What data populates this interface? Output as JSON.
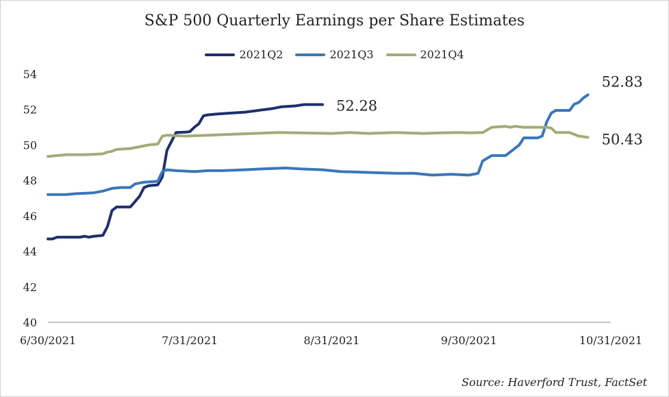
{
  "chart_data": {
    "type": "line",
    "title": "S&P 500 Quarterly Earnings per Share Estimates",
    "xlabel": "",
    "ylabel": "",
    "ylim": [
      40,
      54
    ],
    "yticks": [
      "40",
      "42",
      "44",
      "46",
      "48",
      "50",
      "52",
      "54"
    ],
    "xticks": [
      "6/30/2021",
      "7/31/2021",
      "8/31/2021",
      "9/30/2021",
      "10/31/2021"
    ],
    "xrange_days": [
      0,
      123
    ],
    "legend_position": "top-center",
    "grid": false,
    "series": [
      {
        "name": "2021Q2",
        "color": "#1f2f6e",
        "end_label": "52.28",
        "points": [
          [
            0,
            44.7
          ],
          [
            1,
            44.7
          ],
          [
            2,
            44.8
          ],
          [
            5,
            44.8
          ],
          [
            7,
            44.8
          ],
          [
            8,
            44.85
          ],
          [
            9,
            44.8
          ],
          [
            10,
            44.85
          ],
          [
            12,
            44.9
          ],
          [
            13,
            45.4
          ],
          [
            14,
            46.3
          ],
          [
            15,
            46.5
          ],
          [
            18,
            46.5
          ],
          [
            19,
            46.8
          ],
          [
            20,
            47.1
          ],
          [
            21,
            47.6
          ],
          [
            22,
            47.7
          ],
          [
            24,
            47.75
          ],
          [
            25,
            48.2
          ],
          [
            26,
            49.7
          ],
          [
            27,
            50.2
          ],
          [
            28,
            50.7
          ],
          [
            30,
            50.72
          ],
          [
            31,
            50.75
          ],
          [
            32,
            51.0
          ],
          [
            33,
            51.2
          ],
          [
            34,
            51.65
          ],
          [
            35,
            51.7
          ],
          [
            37,
            51.75
          ],
          [
            40,
            51.8
          ],
          [
            43,
            51.85
          ],
          [
            46,
            51.95
          ],
          [
            49,
            52.05
          ],
          [
            51,
            52.15
          ],
          [
            54,
            52.2
          ],
          [
            56,
            52.28
          ],
          [
            60,
            52.28
          ]
        ]
      },
      {
        "name": "2021Q3",
        "color": "#3b76b8",
        "end_label": "52.83",
        "points": [
          [
            0,
            47.2
          ],
          [
            2,
            47.2
          ],
          [
            4,
            47.2
          ],
          [
            6,
            47.25
          ],
          [
            10,
            47.3
          ],
          [
            12,
            47.4
          ],
          [
            14,
            47.55
          ],
          [
            16,
            47.6
          ],
          [
            18,
            47.6
          ],
          [
            19,
            47.8
          ],
          [
            21,
            47.9
          ],
          [
            24,
            47.95
          ],
          [
            25,
            48.5
          ],
          [
            26,
            48.6
          ],
          [
            28,
            48.55
          ],
          [
            32,
            48.5
          ],
          [
            35,
            48.55
          ],
          [
            38,
            48.55
          ],
          [
            43,
            48.6
          ],
          [
            47,
            48.65
          ],
          [
            52,
            48.7
          ],
          [
            55,
            48.65
          ],
          [
            60,
            48.6
          ],
          [
            64,
            48.5
          ],
          [
            70,
            48.45
          ],
          [
            76,
            48.4
          ],
          [
            80,
            48.4
          ],
          [
            84,
            48.3
          ],
          [
            88,
            48.35
          ],
          [
            92,
            48.3
          ],
          [
            94,
            48.4
          ],
          [
            95,
            49.1
          ],
          [
            97,
            49.4
          ],
          [
            100,
            49.4
          ],
          [
            101,
            49.6
          ],
          [
            103,
            50.0
          ],
          [
            104,
            50.4
          ],
          [
            107,
            50.4
          ],
          [
            108,
            50.5
          ],
          [
            109,
            51.3
          ],
          [
            110,
            51.8
          ],
          [
            111,
            51.95
          ],
          [
            114,
            51.95
          ],
          [
            115,
            52.3
          ],
          [
            116,
            52.4
          ],
          [
            117,
            52.65
          ],
          [
            118,
            52.83
          ]
        ]
      },
      {
        "name": "2021Q4",
        "color": "#a3ab77",
        "end_label": "50.43",
        "points": [
          [
            0,
            49.35
          ],
          [
            2,
            49.4
          ],
          [
            4,
            49.45
          ],
          [
            8,
            49.45
          ],
          [
            12,
            49.5
          ],
          [
            13,
            49.6
          ],
          [
            14,
            49.65
          ],
          [
            15,
            49.75
          ],
          [
            18,
            49.8
          ],
          [
            20,
            49.9
          ],
          [
            22,
            50.0
          ],
          [
            24,
            50.05
          ],
          [
            25,
            50.5
          ],
          [
            26,
            50.55
          ],
          [
            30,
            50.5
          ],
          [
            35,
            50.55
          ],
          [
            40,
            50.6
          ],
          [
            45,
            50.65
          ],
          [
            50,
            50.7
          ],
          [
            55,
            50.68
          ],
          [
            62,
            50.65
          ],
          [
            66,
            50.7
          ],
          [
            70,
            50.65
          ],
          [
            76,
            50.7
          ],
          [
            82,
            50.65
          ],
          [
            86,
            50.68
          ],
          [
            90,
            50.7
          ],
          [
            92,
            50.68
          ],
          [
            95,
            50.7
          ],
          [
            97,
            51.0
          ],
          [
            100,
            51.05
          ],
          [
            101,
            51.0
          ],
          [
            102,
            51.05
          ],
          [
            104,
            51.0
          ],
          [
            106,
            51.0
          ],
          [
            109,
            51.0
          ],
          [
            110,
            50.95
          ],
          [
            111,
            50.7
          ],
          [
            114,
            50.7
          ],
          [
            115,
            50.6
          ],
          [
            116,
            50.5
          ],
          [
            118,
            50.43
          ]
        ]
      }
    ],
    "source": "Source: Haverford Trust, FactSet"
  }
}
